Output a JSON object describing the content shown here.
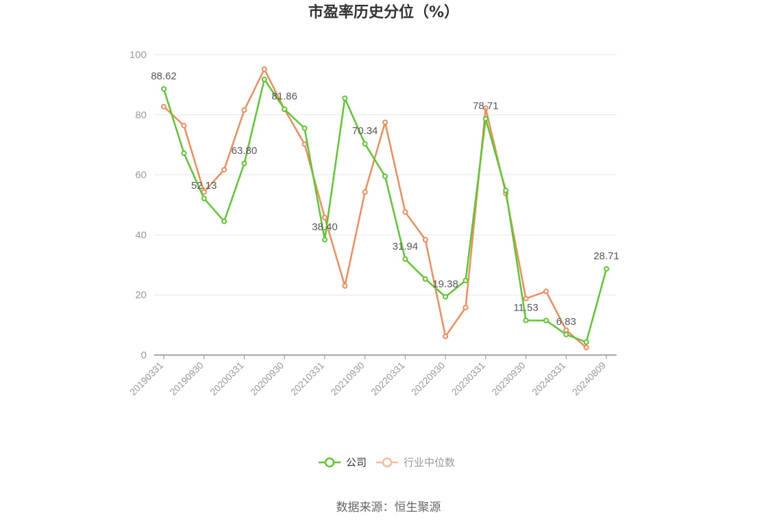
{
  "chart_data": {
    "type": "line",
    "title": "市盈率历史分位（%）",
    "xlabel": "",
    "ylabel": "",
    "ylim": [
      0,
      100
    ],
    "yticks": [
      0,
      20,
      40,
      60,
      80,
      100
    ],
    "grid": true,
    "legend_position": "bottom",
    "x": [
      "20190331",
      "20190630",
      "20190930",
      "20191231",
      "20200331",
      "20200630",
      "20200930",
      "20201231",
      "20210331",
      "20210630",
      "20210930",
      "20211231",
      "20220331",
      "20220630",
      "20220930",
      "20221231",
      "20230331",
      "20230630",
      "20230930",
      "20231231",
      "20240331",
      "20240630",
      "20240809"
    ],
    "xtick_labels": [
      "20190331",
      "20190930",
      "20200331",
      "20200930",
      "20210331",
      "20210930",
      "20220331",
      "20220930",
      "20230331",
      "20230930",
      "20240331",
      "20240809"
    ],
    "series": [
      {
        "name": "公司",
        "color": "#5cc72e",
        "values": [
          88.62,
          67.2,
          52.13,
          44.5,
          63.8,
          91.8,
          81.86,
          75.5,
          38.4,
          85.5,
          70.34,
          59.5,
          31.94,
          25.3,
          19.38,
          24.8,
          78.71,
          54.8,
          11.53,
          11.5,
          6.83,
          4.3,
          28.71
        ],
        "labels": {
          "0": "88.62",
          "2": "52.13",
          "4": "63.80",
          "6": "81.86",
          "8": "38.40",
          "10": "70.34",
          "12": "31.94",
          "14": "19.38",
          "16": "78.71",
          "18": "11.53",
          "20": "6.83",
          "22": "28.71"
        }
      },
      {
        "name": "行业中位数",
        "color": "#f08c5a",
        "values": [
          82.7,
          76.4,
          54.3,
          61.7,
          81.6,
          95.2,
          81.8,
          70.2,
          45.8,
          23.0,
          54.3,
          77.5,
          47.6,
          38.4,
          6.2,
          15.8,
          82.2,
          53.8,
          18.8,
          21.2,
          8.3,
          2.5,
          null
        ]
      }
    ]
  },
  "legend": {
    "items": [
      {
        "label": "公司",
        "color": "#5cc72e",
        "text_color": "#333333"
      },
      {
        "label": "行业中位数",
        "color": "#f8b99a",
        "text_color": "#999999"
      }
    ]
  },
  "source": "数据来源：恒生聚源"
}
